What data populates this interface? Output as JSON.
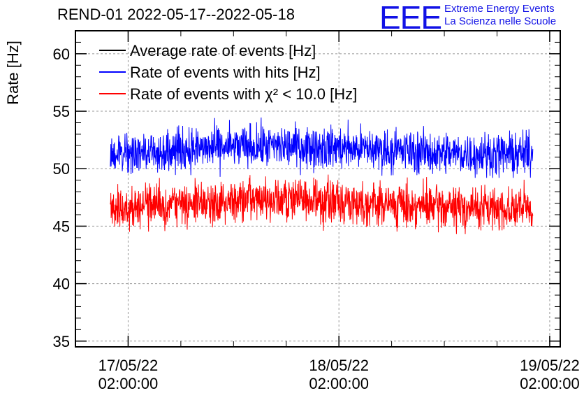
{
  "logo": {
    "mark": "EEE",
    "line1": "Extreme Energy Events",
    "line2": "La Scienza nelle Scuole"
  },
  "colors": {
    "average": "#000000",
    "hits": "#0000ff",
    "chi2": "#ff0000",
    "logo": "#1212e6"
  },
  "chart_data": {
    "type": "line",
    "title": "REND-01 2022-05-17--2022-05-18",
    "ylabel": "Rate [Hz]",
    "xlabel": "",
    "ylim": [
      34.5,
      62
    ],
    "xlim_days": [
      -0.25,
      2.05
    ],
    "yticks": [
      35,
      40,
      45,
      50,
      55,
      60
    ],
    "xticks": [
      {
        "date": "17/05/22",
        "time": "02:00:00"
      },
      {
        "date": "18/05/22",
        "time": "02:00:00"
      },
      {
        "date": "19/05/22",
        "time": "02:00:00"
      }
    ],
    "grid": true,
    "legend_position": "top-left",
    "series": [
      {
        "name": "Average rate of events [Hz]",
        "color": "#000000",
        "x_range": [
          "17/05/22 00:00:00",
          "18/05/22 23:58:00"
        ],
        "values": []
      },
      {
        "name": "Rate of events with hits [Hz]",
        "color": "#0000ff",
        "x_range": [
          "17/05/22 00:00:00",
          "18/05/22 23:58:00"
        ],
        "mean": 51.6,
        "noise_spread": 1.6,
        "min": 49.2,
        "max": 55.2
      },
      {
        "name": "Rate of events with χ² < 10.0 [Hz]",
        "color": "#ff0000",
        "x_range": [
          "17/05/22 00:00:00",
          "18/05/22 23:58:00"
        ],
        "mean": 46.9,
        "noise_spread": 1.6,
        "min": 43.3,
        "max": 49.9
      }
    ]
  }
}
